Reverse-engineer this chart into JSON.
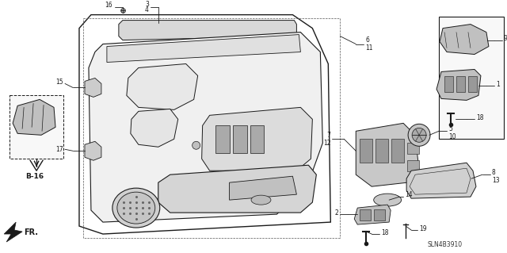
{
  "bg_color": "#ffffff",
  "diagram_code": "SLN4B3910",
  "figsize": [
    6.4,
    3.19
  ],
  "dpi": 100,
  "dark": "#1a1a1a",
  "gray": "#888888",
  "lgray": "#cccccc"
}
